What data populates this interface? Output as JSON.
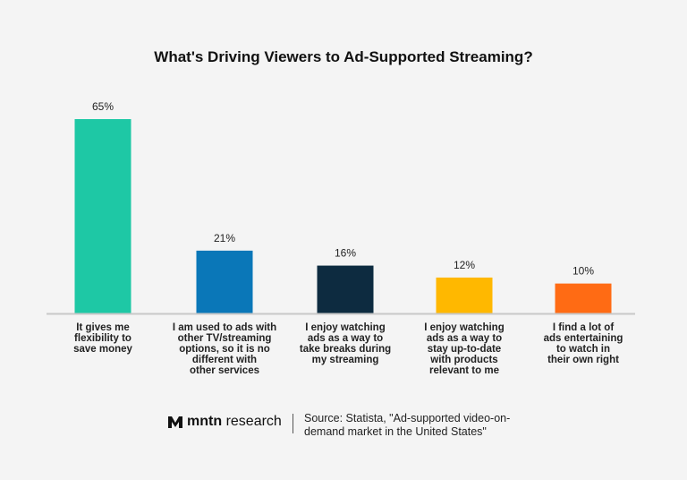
{
  "chart_data": {
    "type": "bar",
    "title": "What's Driving Viewers to Ad-Supported Streaming?",
    "categories": [
      "It gives me\nflexibility to\nsave money",
      "I am used to ads with\nother TV/streaming\noptions, so it is no\ndifferent with\nother services",
      "I enjoy watching\nads as a way to\ntake breaks during\nmy streaming",
      "I enjoy watching\nads as a way to\nstay up-to-date\nwith products\nrelevant to me",
      "I find a lot of\nads entertaining\nto watch in\ntheir own right"
    ],
    "values": [
      65,
      21,
      16,
      12,
      10
    ],
    "data_labels": [
      "65%",
      "21%",
      "16%",
      "12%",
      "10%"
    ],
    "colors": [
      "#1ec8a5",
      "#0a77b8",
      "#0d2b40",
      "#ffb800",
      "#ff6b14"
    ],
    "xlabel": "",
    "ylabel": "",
    "ylim": [
      0,
      65
    ],
    "grid": false,
    "legend": "none"
  },
  "footer": {
    "brand_bold": "mntn",
    "brand_rest": "research",
    "source": "Source: Statista, \"Ad-supported video-on-demand market in the United States\""
  }
}
